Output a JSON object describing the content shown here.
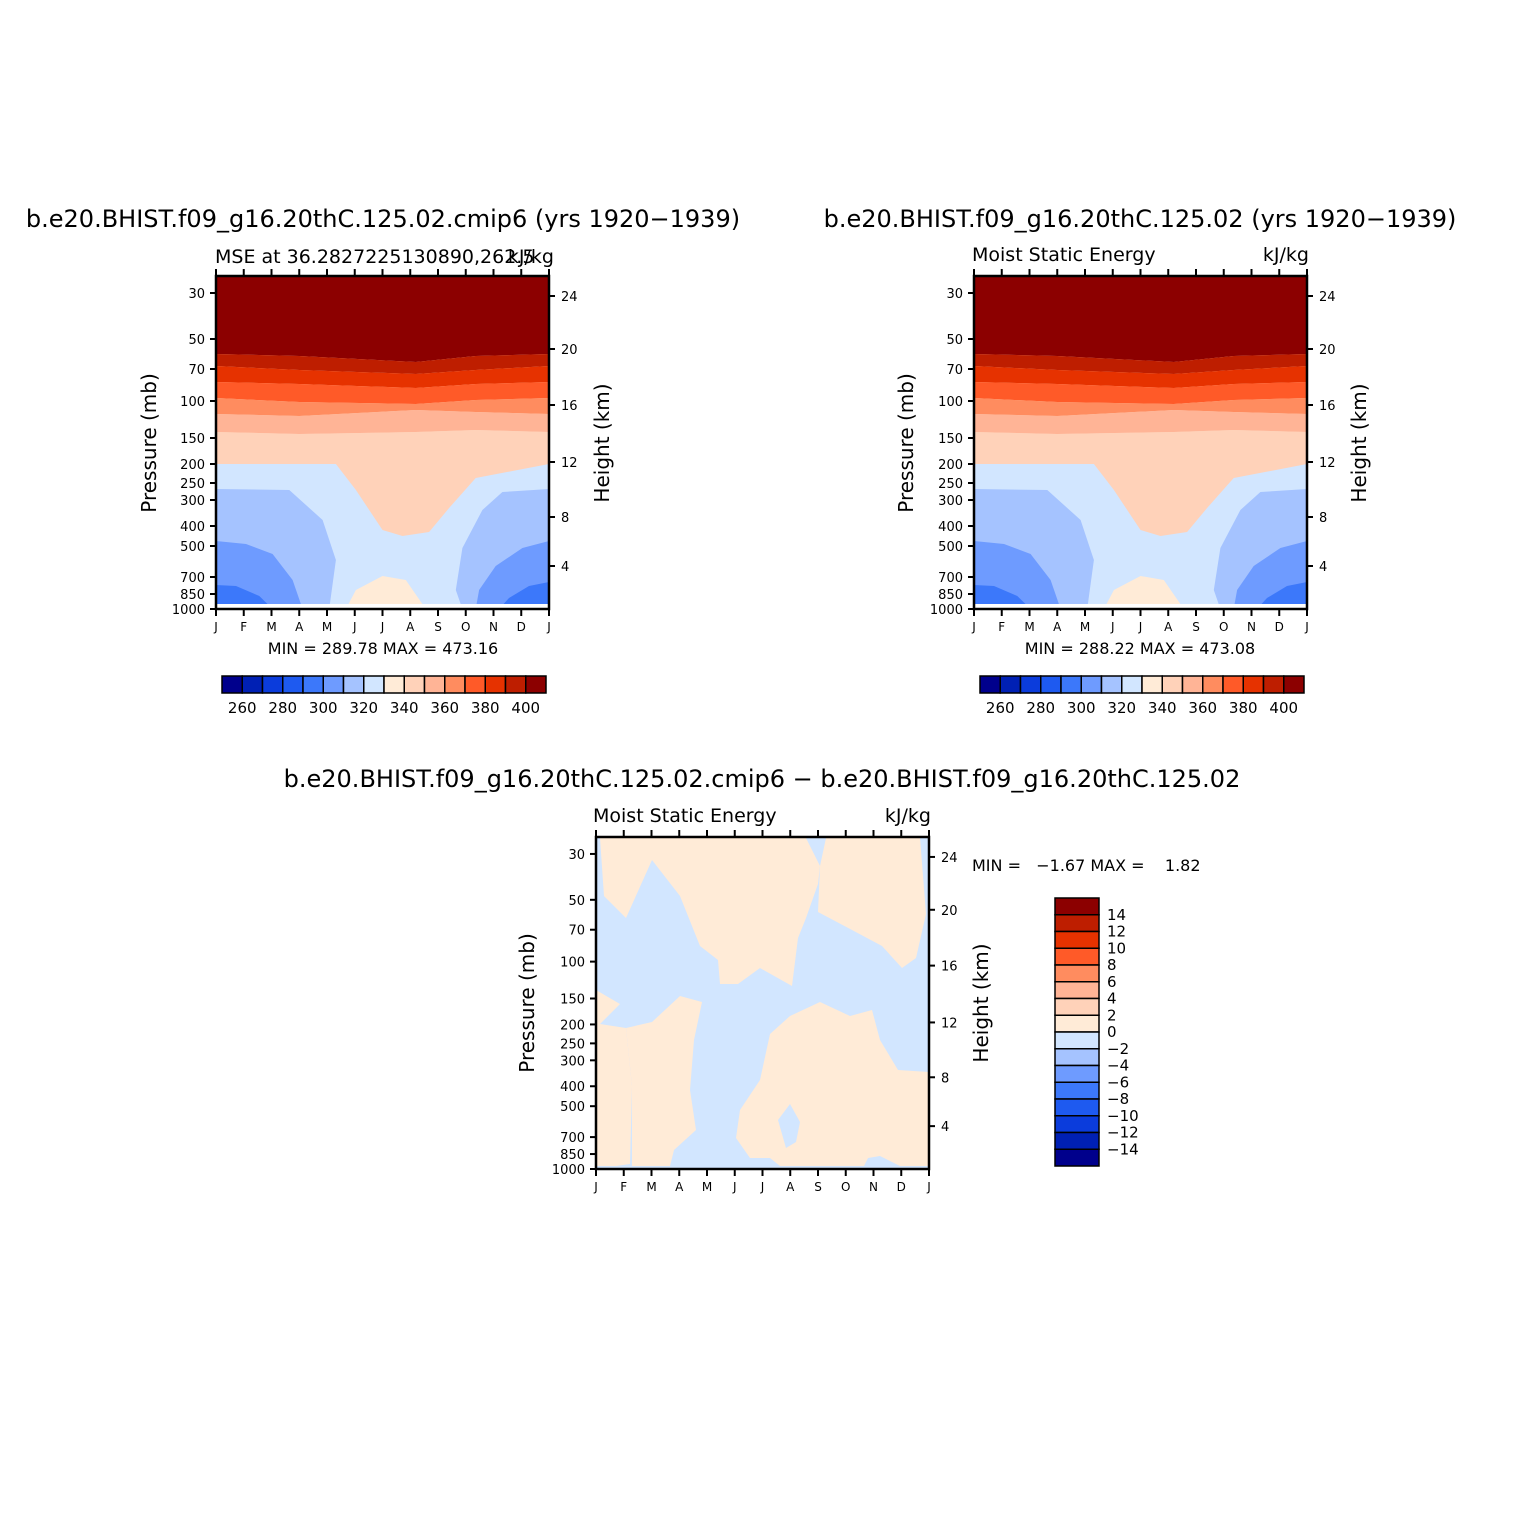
{
  "colors": {
    "absolute_levels": [
      "#00008c",
      "#0020b4",
      "#0b3cdc",
      "#1e5af0",
      "#3c78fa",
      "#6e9bff",
      "#a5c3ff",
      "#d2e6ff",
      "#ffebd7",
      "#ffd2b9",
      "#ffb496",
      "#ff8c5f",
      "#ff5a28",
      "#e63200",
      "#be1e00",
      "#8c0000"
    ],
    "diff_levels": [
      "#00008c",
      "#0020b4",
      "#0b3cdc",
      "#1e5af0",
      "#3c78fa",
      "#6e9bff",
      "#a5c3ff",
      "#d2e6ff",
      "#ffebd7",
      "#ffd2b9",
      "#ffb496",
      "#ff8c5f",
      "#ff5a28",
      "#e63200",
      "#be1e00",
      "#8c0000"
    ]
  },
  "panels": {
    "left": {
      "main_title": "b.e20.BHIST.f09_g16.20thC.125.02.cmip6 (yrs 1920−1939)",
      "left_subtitle": "MSE at 36.2827225130890,262.5",
      "right_subtitle": "kJ/kg",
      "y_label": "Pressure (mb)",
      "y2_label": "Height (km)",
      "minmax": "MIN = 289.78  MAX = 473.16"
    },
    "right": {
      "main_title": "b.e20.BHIST.f09_g16.20thC.125.02 (yrs 1920−1939)",
      "left_subtitle": "Moist Static Energy",
      "right_subtitle": "kJ/kg",
      "y_label": "Pressure (mb)",
      "y2_label": "Height (km)",
      "minmax": "MIN = 288.22  MAX = 473.08"
    },
    "diff": {
      "main_title": "b.e20.BHIST.f09_g16.20thC.125.02.cmip6 − b.e20.BHIST.f09_g16.20thC.125.02",
      "left_subtitle": "Moist Static Energy",
      "right_subtitle": "kJ/kg",
      "y_label": "Pressure (mb)",
      "y2_label": "Height (km)",
      "minmax": "MIN =   −1.67 MAX =    1.82"
    }
  },
  "chart_data": [
    {
      "type": "heatmap",
      "subtype": "pressure-month contour",
      "title": "b.e20.BHIST.f09_g16.20thC.125.02.cmip6 (yrs 1920−1939)",
      "variable": "MSE at 36.2827225130890,262.5",
      "units": "kJ/kg",
      "x_ticks": [
        "J",
        "F",
        "M",
        "A",
        "M",
        "J",
        "J",
        "A",
        "S",
        "O",
        "N",
        "D",
        "J"
      ],
      "y_ticks": [
        "30",
        "50",
        "70",
        "100",
        "150",
        "200",
        "250",
        "300",
        "400",
        "500",
        "700",
        "850",
        "1000"
      ],
      "y_scale": "log",
      "ylabel": "Pressure (mb)",
      "y2_ticks": [
        "24",
        "20",
        "16",
        "12",
        "8",
        "4"
      ],
      "y2label": "Height (km)",
      "colorbar_labels": [
        "260",
        "280",
        "300",
        "320",
        "340",
        "360",
        "380",
        "400"
      ],
      "min": 289.78,
      "max": 473.16
    },
    {
      "type": "heatmap",
      "subtype": "pressure-month contour",
      "title": "b.e20.BHIST.f09_g16.20thC.125.02 (yrs 1920−1939)",
      "variable": "Moist Static Energy",
      "units": "kJ/kg",
      "x_ticks": [
        "J",
        "F",
        "M",
        "A",
        "M",
        "J",
        "J",
        "A",
        "S",
        "O",
        "N",
        "D",
        "J"
      ],
      "y_ticks": [
        "30",
        "50",
        "70",
        "100",
        "150",
        "200",
        "250",
        "300",
        "400",
        "500",
        "700",
        "850",
        "1000"
      ],
      "y_scale": "log",
      "ylabel": "Pressure (mb)",
      "y2_ticks": [
        "24",
        "20",
        "16",
        "12",
        "8",
        "4"
      ],
      "y2label": "Height (km)",
      "colorbar_labels": [
        "260",
        "280",
        "300",
        "320",
        "340",
        "360",
        "380",
        "400"
      ],
      "min": 288.22,
      "max": 473.08
    },
    {
      "type": "heatmap",
      "subtype": "pressure-month contour (difference)",
      "title": "b.e20.BHIST.f09_g16.20thC.125.02.cmip6 − b.e20.BHIST.f09_g16.20thC.125.02",
      "variable": "Moist Static Energy",
      "units": "kJ/kg",
      "x_ticks": [
        "J",
        "F",
        "M",
        "A",
        "M",
        "J",
        "J",
        "A",
        "S",
        "O",
        "N",
        "D",
        "J"
      ],
      "y_ticks": [
        "30",
        "50",
        "70",
        "100",
        "150",
        "200",
        "250",
        "300",
        "400",
        "500",
        "700",
        "850",
        "1000"
      ],
      "y_scale": "log",
      "ylabel": "Pressure (mb)",
      "y2_ticks": [
        "24",
        "20",
        "16",
        "12",
        "8",
        "4"
      ],
      "y2label": "Height (km)",
      "colorbar_labels": [
        "14",
        "12",
        "10",
        "8",
        "6",
        "4",
        "2",
        "0",
        "−2",
        "−4",
        "−6",
        "−8",
        "−10",
        "−12",
        "−14"
      ],
      "min": -1.67,
      "max": 1.82
    }
  ]
}
